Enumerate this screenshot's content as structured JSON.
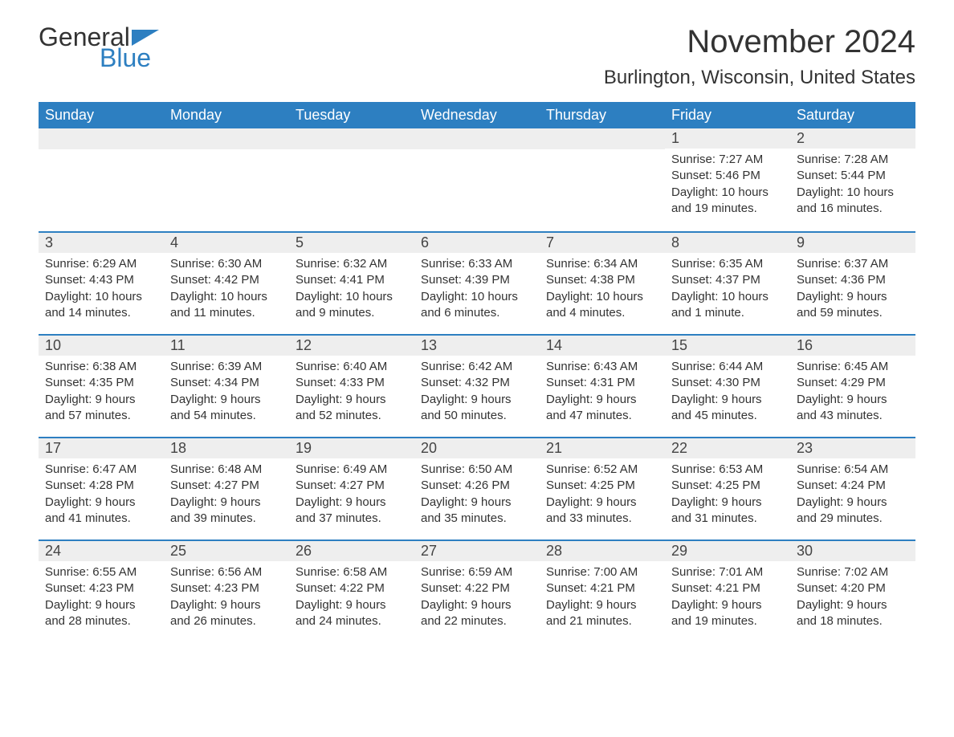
{
  "brand": {
    "word1": "General",
    "word2": "Blue",
    "flag_color": "#2d7fc1"
  },
  "title": "November 2024",
  "location": "Burlington, Wisconsin, United States",
  "colors": {
    "header_bg": "#2d7fc1",
    "header_text": "#ffffff",
    "date_row_bg": "#eeeeee",
    "week_divider": "#2d7fc1",
    "body_text": "#333333"
  },
  "day_names": [
    "Sunday",
    "Monday",
    "Tuesday",
    "Wednesday",
    "Thursday",
    "Friday",
    "Saturday"
  ],
  "weeks": [
    [
      null,
      null,
      null,
      null,
      null,
      {
        "date": "1",
        "sunrise": "Sunrise: 7:27 AM",
        "sunset": "Sunset: 5:46 PM",
        "daylight": "Daylight: 10 hours and 19 minutes."
      },
      {
        "date": "2",
        "sunrise": "Sunrise: 7:28 AM",
        "sunset": "Sunset: 5:44 PM",
        "daylight": "Daylight: 10 hours and 16 minutes."
      }
    ],
    [
      {
        "date": "3",
        "sunrise": "Sunrise: 6:29 AM",
        "sunset": "Sunset: 4:43 PM",
        "daylight": "Daylight: 10 hours and 14 minutes."
      },
      {
        "date": "4",
        "sunrise": "Sunrise: 6:30 AM",
        "sunset": "Sunset: 4:42 PM",
        "daylight": "Daylight: 10 hours and 11 minutes."
      },
      {
        "date": "5",
        "sunrise": "Sunrise: 6:32 AM",
        "sunset": "Sunset: 4:41 PM",
        "daylight": "Daylight: 10 hours and 9 minutes."
      },
      {
        "date": "6",
        "sunrise": "Sunrise: 6:33 AM",
        "sunset": "Sunset: 4:39 PM",
        "daylight": "Daylight: 10 hours and 6 minutes."
      },
      {
        "date": "7",
        "sunrise": "Sunrise: 6:34 AM",
        "sunset": "Sunset: 4:38 PM",
        "daylight": "Daylight: 10 hours and 4 minutes."
      },
      {
        "date": "8",
        "sunrise": "Sunrise: 6:35 AM",
        "sunset": "Sunset: 4:37 PM",
        "daylight": "Daylight: 10 hours and 1 minute."
      },
      {
        "date": "9",
        "sunrise": "Sunrise: 6:37 AM",
        "sunset": "Sunset: 4:36 PM",
        "daylight": "Daylight: 9 hours and 59 minutes."
      }
    ],
    [
      {
        "date": "10",
        "sunrise": "Sunrise: 6:38 AM",
        "sunset": "Sunset: 4:35 PM",
        "daylight": "Daylight: 9 hours and 57 minutes."
      },
      {
        "date": "11",
        "sunrise": "Sunrise: 6:39 AM",
        "sunset": "Sunset: 4:34 PM",
        "daylight": "Daylight: 9 hours and 54 minutes."
      },
      {
        "date": "12",
        "sunrise": "Sunrise: 6:40 AM",
        "sunset": "Sunset: 4:33 PM",
        "daylight": "Daylight: 9 hours and 52 minutes."
      },
      {
        "date": "13",
        "sunrise": "Sunrise: 6:42 AM",
        "sunset": "Sunset: 4:32 PM",
        "daylight": "Daylight: 9 hours and 50 minutes."
      },
      {
        "date": "14",
        "sunrise": "Sunrise: 6:43 AM",
        "sunset": "Sunset: 4:31 PM",
        "daylight": "Daylight: 9 hours and 47 minutes."
      },
      {
        "date": "15",
        "sunrise": "Sunrise: 6:44 AM",
        "sunset": "Sunset: 4:30 PM",
        "daylight": "Daylight: 9 hours and 45 minutes."
      },
      {
        "date": "16",
        "sunrise": "Sunrise: 6:45 AM",
        "sunset": "Sunset: 4:29 PM",
        "daylight": "Daylight: 9 hours and 43 minutes."
      }
    ],
    [
      {
        "date": "17",
        "sunrise": "Sunrise: 6:47 AM",
        "sunset": "Sunset: 4:28 PM",
        "daylight": "Daylight: 9 hours and 41 minutes."
      },
      {
        "date": "18",
        "sunrise": "Sunrise: 6:48 AM",
        "sunset": "Sunset: 4:27 PM",
        "daylight": "Daylight: 9 hours and 39 minutes."
      },
      {
        "date": "19",
        "sunrise": "Sunrise: 6:49 AM",
        "sunset": "Sunset: 4:27 PM",
        "daylight": "Daylight: 9 hours and 37 minutes."
      },
      {
        "date": "20",
        "sunrise": "Sunrise: 6:50 AM",
        "sunset": "Sunset: 4:26 PM",
        "daylight": "Daylight: 9 hours and 35 minutes."
      },
      {
        "date": "21",
        "sunrise": "Sunrise: 6:52 AM",
        "sunset": "Sunset: 4:25 PM",
        "daylight": "Daylight: 9 hours and 33 minutes."
      },
      {
        "date": "22",
        "sunrise": "Sunrise: 6:53 AM",
        "sunset": "Sunset: 4:25 PM",
        "daylight": "Daylight: 9 hours and 31 minutes."
      },
      {
        "date": "23",
        "sunrise": "Sunrise: 6:54 AM",
        "sunset": "Sunset: 4:24 PM",
        "daylight": "Daylight: 9 hours and 29 minutes."
      }
    ],
    [
      {
        "date": "24",
        "sunrise": "Sunrise: 6:55 AM",
        "sunset": "Sunset: 4:23 PM",
        "daylight": "Daylight: 9 hours and 28 minutes."
      },
      {
        "date": "25",
        "sunrise": "Sunrise: 6:56 AM",
        "sunset": "Sunset: 4:23 PM",
        "daylight": "Daylight: 9 hours and 26 minutes."
      },
      {
        "date": "26",
        "sunrise": "Sunrise: 6:58 AM",
        "sunset": "Sunset: 4:22 PM",
        "daylight": "Daylight: 9 hours and 24 minutes."
      },
      {
        "date": "27",
        "sunrise": "Sunrise: 6:59 AM",
        "sunset": "Sunset: 4:22 PM",
        "daylight": "Daylight: 9 hours and 22 minutes."
      },
      {
        "date": "28",
        "sunrise": "Sunrise: 7:00 AM",
        "sunset": "Sunset: 4:21 PM",
        "daylight": "Daylight: 9 hours and 21 minutes."
      },
      {
        "date": "29",
        "sunrise": "Sunrise: 7:01 AM",
        "sunset": "Sunset: 4:21 PM",
        "daylight": "Daylight: 9 hours and 19 minutes."
      },
      {
        "date": "30",
        "sunrise": "Sunrise: 7:02 AM",
        "sunset": "Sunset: 4:20 PM",
        "daylight": "Daylight: 9 hours and 18 minutes."
      }
    ]
  ]
}
